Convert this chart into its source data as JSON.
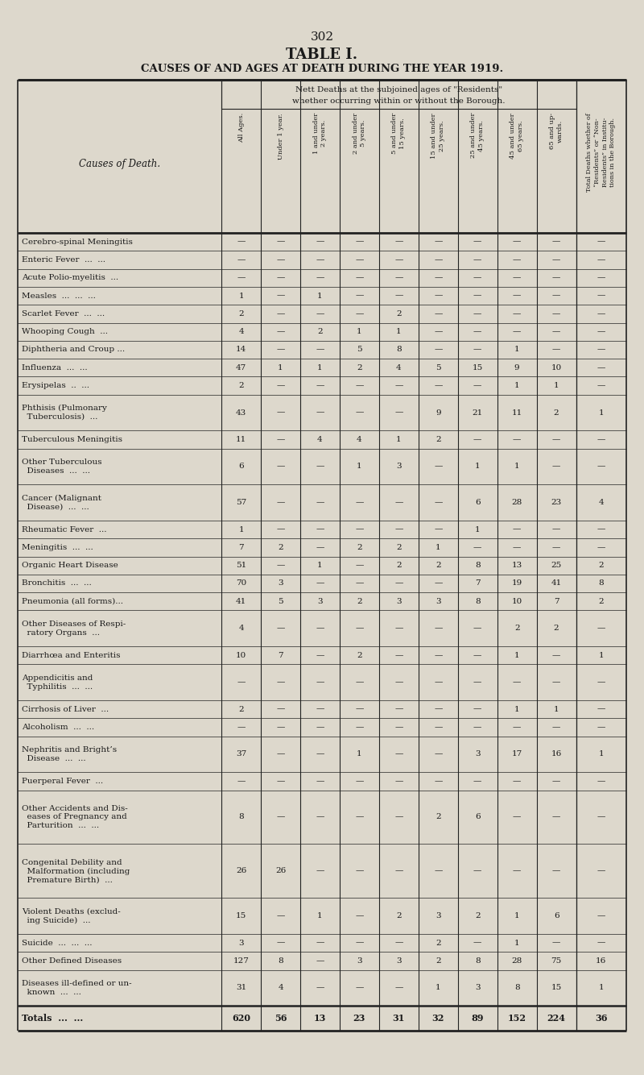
{
  "page_number": "302",
  "title1": "TABLE I.",
  "title2": "CAUSES OF AND AGES AT DEATH DURING THE YEAR 1919.",
  "bg_color": "#ddd8cc",
  "text_color": "#1a1a1a",
  "line_color": "#222222",
  "col_headers_rotated": [
    "All Ages.",
    "Under 1 year.",
    "1 and under\n2 years.",
    "2 and under\n5 years.",
    "5 and under\n15 years.",
    "15 and under\n25 years.",
    "25 and under\n45 years.",
    "45 and under\n65 years.",
    "65 and up-\nwards.",
    "Total Deaths whether of\n“Residents” or “Non-\nResidents” in Institu-\ntions in the Borough."
  ],
  "rows": [
    [
      "Cerebro-spinal Meningitis",
      "—",
      "—",
      "—",
      "—",
      "—",
      "—",
      "—",
      "—",
      "—",
      "—"
    ],
    [
      "Enteric Fever  ...  ...",
      "—",
      "—",
      "—",
      "—",
      "—",
      "—",
      "—",
      "—",
      "—",
      "—"
    ],
    [
      "Acute Polio-myelitis  ...",
      "—",
      "—",
      "—",
      "—",
      "—",
      "—",
      "—",
      "—",
      "—",
      "—"
    ],
    [
      "Measles  ...  ...  ...",
      "1",
      "—",
      "1",
      "—",
      "—",
      "—",
      "—",
      "—",
      "—",
      "—"
    ],
    [
      "Scarlet Fever  ...  ...",
      "2",
      "—",
      "—",
      "—",
      "2",
      "—",
      "—",
      "—",
      "—",
      "—"
    ],
    [
      "Whooping Cough  ...",
      "4",
      "—",
      "2",
      "1",
      "1",
      "—",
      "—",
      "—",
      "—",
      "—"
    ],
    [
      "Diphtheria and Croup ...",
      "14",
      "—",
      "—",
      "5",
      "8",
      "—",
      "—",
      "1",
      "—",
      "—"
    ],
    [
      "Influenza  ...  ...",
      "47",
      "1",
      "1",
      "2",
      "4",
      "5",
      "15",
      "9",
      "10",
      "—"
    ],
    [
      "Erysipelas  ..  ...",
      "2",
      "—",
      "—",
      "—",
      "—",
      "—",
      "—",
      "1",
      "1",
      "—"
    ],
    [
      "Phthisis (Pulmonary\n  Tuberculosis)  ...",
      "43",
      "—",
      "—",
      "—",
      "—",
      "9",
      "21",
      "11",
      "2",
      "1"
    ],
    [
      "Tuberculous Meningitis",
      "11",
      "—",
      "4",
      "4",
      "1",
      "2",
      "—",
      "—",
      "—",
      "—"
    ],
    [
      "Other Tuberculous\n  Diseases  ...  ...",
      "6",
      "—",
      "—",
      "1",
      "3",
      "—",
      "1",
      "1",
      "—",
      "—"
    ],
    [
      "Cancer (Malignant\n  Disease)  ...  ...",
      "57",
      "—",
      "—",
      "—",
      "—",
      "—",
      "6",
      "28",
      "23",
      "4"
    ],
    [
      "Rheumatic Fever  ...",
      "1",
      "—",
      "—",
      "—",
      "—",
      "—",
      "1",
      "—",
      "—",
      "—"
    ],
    [
      "Meningitis  ...  ...",
      "7",
      "2",
      "—",
      "2",
      "2",
      "1",
      "—",
      "—",
      "—",
      "—"
    ],
    [
      "Organic Heart Disease",
      "51",
      "—",
      "1",
      "—",
      "2",
      "2",
      "8",
      "13",
      "25",
      "2"
    ],
    [
      "Bronchitis  ...  ...",
      "70",
      "3",
      "—",
      "—",
      "—",
      "—",
      "7",
      "19",
      "41",
      "8"
    ],
    [
      "Pneumonia (all forms)...",
      "41",
      "5",
      "3",
      "2",
      "3",
      "3",
      "8",
      "10",
      "7",
      "2"
    ],
    [
      "Other Diseases of Respi-\n  ratory Organs  ...",
      "4",
      "—",
      "—",
      "—",
      "—",
      "—",
      "—",
      "2",
      "2",
      "—"
    ],
    [
      "Diarrhœa and Enteritis",
      "10",
      "7",
      "—",
      "2",
      "—",
      "—",
      "—",
      "1",
      "—",
      "1"
    ],
    [
      "Appendicitis and\n  Typhilitis  ...  ...",
      "—",
      "—",
      "—",
      "—",
      "—",
      "—",
      "—",
      "—",
      "—",
      "—"
    ],
    [
      "Cirrhosis of Liver  ...",
      "2",
      "—",
      "—",
      "—",
      "—",
      "—",
      "—",
      "1",
      "1",
      "—"
    ],
    [
      "Alcoholism  ...  ...",
      "—",
      "—",
      "—",
      "—",
      "—",
      "—",
      "—",
      "—",
      "—",
      "—"
    ],
    [
      "Nephritis and Bright’s\n  Disease  ...  ...",
      "37",
      "—",
      "—",
      "1",
      "—",
      "—",
      "3",
      "17",
      "16",
      "1"
    ],
    [
      "Puerperal Fever  ...",
      "—",
      "—",
      "—",
      "—",
      "—",
      "—",
      "—",
      "—",
      "—",
      "—"
    ],
    [
      "Other Accidents and Dis-\n  eases of Pregnancy and\n  Parturition  ...  ...",
      "8",
      "—",
      "—",
      "—",
      "—",
      "2",
      "6",
      "—",
      "—",
      "—"
    ],
    [
      "Congenital Debility and\n  Malformation (including\n  Premature Birth)  ...",
      "26",
      "26",
      "—",
      "—",
      "—",
      "—",
      "—",
      "—",
      "—",
      "—"
    ],
    [
      "Violent Deaths (exclud-\n  ing Suicide)  ...",
      "15",
      "—",
      "1",
      "—",
      "2",
      "3",
      "2",
      "1",
      "6",
      "—"
    ],
    [
      "Suicide  ...  ...  ...",
      "3",
      "—",
      "—",
      "—",
      "—",
      "2",
      "—",
      "1",
      "—",
      "—"
    ],
    [
      "Other Defined Diseases",
      "127",
      "8",
      "—",
      "3",
      "3",
      "2",
      "8",
      "28",
      "75",
      "16"
    ],
    [
      "Diseases ill-defined or un-\n  known  ...  ...",
      "31",
      "4",
      "—",
      "—",
      "—",
      "1",
      "3",
      "8",
      "15",
      "1"
    ]
  ],
  "totals_row": [
    "Totals  ...  ...",
    "620",
    "56",
    "13",
    "23",
    "31",
    "32",
    "89",
    "152",
    "224",
    "36"
  ]
}
